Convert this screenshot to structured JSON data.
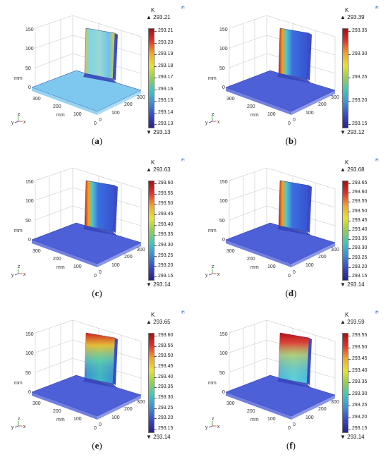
{
  "unit": "K",
  "axis": {
    "z_ticks": [
      "0",
      "50",
      "100",
      "150"
    ],
    "y_ticks": [
      "300",
      "200",
      "100",
      "0"
    ],
    "x_ticks": [
      "0",
      "100",
      "200",
      "300"
    ],
    "z_label": "mm",
    "y_label": "mm",
    "triad": {
      "z": "z",
      "y": "y",
      "x": "x"
    }
  },
  "panels": [
    {
      "caption_label": "a",
      "max_label": "293.21",
      "min_label": "293.13",
      "ticks": [
        "293.21",
        "293.20",
        "293.19",
        "293.18",
        "293.17",
        "293.16",
        "293.15",
        "293.14",
        "293.13"
      ],
      "base_color": "#7ec8ef",
      "style": "mixed"
    },
    {
      "caption_label": "b",
      "max_label": "293.39",
      "min_label": "293.12",
      "ticks": [
        "293.35",
        "293.30",
        "293.25",
        "293.20",
        "293.15"
      ],
      "base_color": "#4d60d8",
      "style": "edge"
    },
    {
      "caption_label": "c",
      "max_label": "293.63",
      "min_label": "293.14",
      "ticks": [
        "293.60",
        "293.55",
        "293.50",
        "293.45",
        "293.40",
        "293.35",
        "293.30",
        "293.25",
        "293.20",
        "293.15"
      ],
      "base_color": "#4d60d8",
      "style": "edge"
    },
    {
      "caption_label": "d",
      "max_label": "293.68",
      "min_label": "293.14",
      "ticks": [
        "293.65",
        "293.60",
        "293.55",
        "293.50",
        "293.45",
        "293.40",
        "293.35",
        "293.30",
        "293.25",
        "293.20",
        "293.15"
      ],
      "base_color": "#4d60d8",
      "style": "edge"
    },
    {
      "caption_label": "e",
      "max_label": "293.65",
      "min_label": "293.14",
      "ticks": [
        "293.60",
        "293.55",
        "293.50",
        "293.45",
        "293.40",
        "293.35",
        "293.30",
        "293.25",
        "293.20",
        "293.15"
      ],
      "base_color": "#4d60d8",
      "style": "top"
    },
    {
      "caption_label": "f",
      "max_label": "293.59",
      "min_label": "293.14",
      "ticks": [
        "293.55",
        "293.50",
        "293.45",
        "293.40",
        "293.35",
        "293.30",
        "293.25",
        "293.20",
        "293.15"
      ],
      "base_color": "#4d60d8",
      "style": "top-hot"
    }
  ],
  "colors": {
    "rainbow": [
      "#a50f15",
      "#e8312a",
      "#f5a623",
      "#e8e32a",
      "#8fd14f",
      "#3ec7c0",
      "#3a8fd9",
      "#3a47c8",
      "#2b1f8c"
    ],
    "grid": "#c8c8c8",
    "text": "#222222"
  }
}
